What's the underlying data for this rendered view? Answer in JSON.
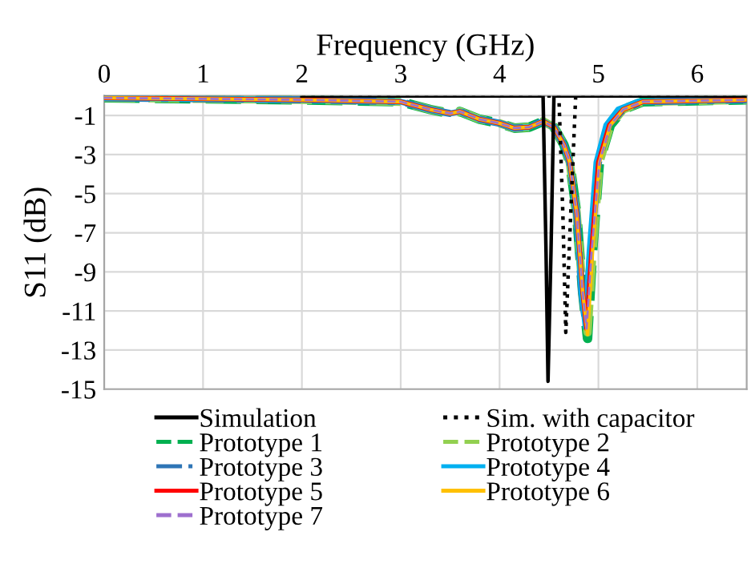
{
  "chart_data": {
    "type": "line",
    "xlabel": "Frequency (GHz)",
    "ylabel": "S11 (dB)",
    "xlim": [
      0,
      6.5
    ],
    "xticks": [
      0,
      1,
      2,
      3,
      4,
      5,
      6
    ],
    "ylim": [
      -15,
      0
    ],
    "yticks": [
      -1,
      -3,
      -5,
      -7,
      -9,
      -11,
      -13,
      -15
    ],
    "grid": true,
    "legend": "bottom",
    "marker": "none",
    "series": [
      {
        "name": "Simulation",
        "color": "#000000",
        "line_style": "solid",
        "x": [
          2,
          4.44,
          4.47,
          4.49,
          4.52,
          4.55,
          6.5
        ],
        "values": [
          0,
          0,
          -8,
          -14.6,
          -8,
          0,
          0
        ]
      },
      {
        "name": "Sim. with capacitor",
        "color": "#000000",
        "line_style": "dotted",
        "x": [
          2,
          4.6,
          4.64,
          4.67,
          4.72,
          4.77,
          6.5
        ],
        "values": [
          0,
          0,
          -6,
          -12.1,
          -6,
          0,
          0
        ]
      },
      {
        "name": "Prototype 1",
        "color": "#00b050",
        "line_style": "dashed",
        "x": [
          0,
          2,
          3,
          3.3,
          3.5,
          3.6,
          3.8,
          4.0,
          4.15,
          4.3,
          4.44,
          4.55,
          4.65,
          4.71,
          4.78,
          4.84,
          4.89,
          4.94,
          5.01,
          5.12,
          5.25,
          5.45,
          6.5
        ],
        "values": [
          -0.1,
          -0.2,
          -0.3,
          -0.7,
          -0.9,
          -0.8,
          -1.2,
          -1.4,
          -1.65,
          -1.6,
          -1.3,
          -1.6,
          -2.5,
          -3.4,
          -6,
          -10,
          -12.4,
          -8,
          -3.4,
          -1.5,
          -0.7,
          -0.3,
          -0.2
        ]
      },
      {
        "name": "Prototype 2",
        "color": "#92d050",
        "line_style": "dashed",
        "x": [
          0,
          2,
          3,
          3.3,
          3.5,
          3.6,
          3.8,
          4.0,
          4.15,
          4.3,
          4.44,
          4.55,
          4.65,
          4.71,
          4.78,
          4.84,
          4.89,
          4.94,
          5.01,
          5.12,
          5.25,
          5.45,
          6.5
        ],
        "values": [
          -0.1,
          -0.2,
          -0.3,
          -0.7,
          -0.9,
          -0.8,
          -1.2,
          -1.4,
          -1.65,
          -1.6,
          -1.3,
          -1.6,
          -2.5,
          -3.4,
          -6,
          -10,
          -12.1,
          -8,
          -3.4,
          -1.5,
          -0.7,
          -0.3,
          -0.2
        ]
      },
      {
        "name": "Prototype 3",
        "color": "#2e75b6",
        "line_style": "dashdot",
        "x": [
          0,
          2,
          3,
          3.3,
          3.5,
          3.6,
          3.8,
          4.0,
          4.15,
          4.3,
          4.44,
          4.55,
          4.65,
          4.71,
          4.78,
          4.83,
          4.87,
          4.92,
          5.0,
          5.1,
          5.25,
          5.45,
          6.5
        ],
        "values": [
          -0.1,
          -0.2,
          -0.3,
          -0.7,
          -0.9,
          -0.8,
          -1.2,
          -1.4,
          -1.65,
          -1.6,
          -1.3,
          -1.6,
          -2.5,
          -3.4,
          -6,
          -10,
          -11.6,
          -8,
          -3.4,
          -1.5,
          -0.7,
          -0.3,
          -0.2
        ]
      },
      {
        "name": "Prototype 4",
        "color": "#00b0f0",
        "line_style": "solid",
        "x": [
          0,
          2,
          3,
          3.3,
          3.5,
          3.6,
          3.8,
          4.0,
          4.15,
          4.3,
          4.44,
          4.55,
          4.65,
          4.71,
          4.78,
          4.83,
          4.87,
          4.91,
          4.98,
          5.08,
          5.2,
          5.4,
          6.5
        ],
        "values": [
          -0.1,
          -0.2,
          -0.3,
          -0.7,
          -0.9,
          -0.8,
          -1.2,
          -1.4,
          -1.65,
          -1.6,
          -1.3,
          -1.6,
          -2.5,
          -3.4,
          -6,
          -10,
          -11.8,
          -8,
          -3.4,
          -1.5,
          -0.7,
          -0.3,
          -0.2
        ]
      },
      {
        "name": "Prototype 5",
        "color": "#ff0000",
        "line_style": "solid",
        "x": [
          0,
          2,
          3,
          3.3,
          3.5,
          3.6,
          3.8,
          4.0,
          4.15,
          4.3,
          4.44,
          4.55,
          4.65,
          4.71,
          4.78,
          4.84,
          4.88,
          4.93,
          5.0,
          5.11,
          5.25,
          5.45,
          6.5
        ],
        "values": [
          -0.1,
          -0.2,
          -0.3,
          -0.7,
          -0.9,
          -0.8,
          -1.2,
          -1.4,
          -1.65,
          -1.6,
          -1.3,
          -1.6,
          -2.5,
          -3.4,
          -6,
          -10,
          -11.9,
          -8,
          -3.4,
          -1.5,
          -0.7,
          -0.3,
          -0.2
        ]
      },
      {
        "name": "Prototype 6",
        "color": "#ffc000",
        "line_style": "solid",
        "x": [
          0,
          2,
          3,
          3.3,
          3.5,
          3.6,
          3.8,
          4.0,
          4.15,
          4.3,
          4.44,
          4.55,
          4.65,
          4.71,
          4.78,
          4.84,
          4.89,
          4.94,
          5.01,
          5.12,
          5.25,
          5.45,
          6.5
        ],
        "values": [
          -0.1,
          -0.2,
          -0.3,
          -0.7,
          -0.9,
          -0.8,
          -1.2,
          -1.4,
          -1.65,
          -1.6,
          -1.3,
          -1.6,
          -2.5,
          -3.4,
          -6,
          -10,
          -12.2,
          -8,
          -3.4,
          -1.5,
          -0.7,
          -0.3,
          -0.2
        ]
      },
      {
        "name": "Prototype 7",
        "color": "#9e6fce",
        "line_style": "dashed",
        "x": [
          0,
          2,
          3,
          3.3,
          3.5,
          3.6,
          3.8,
          4.0,
          4.15,
          4.3,
          4.44,
          4.55,
          4.65,
          4.71,
          4.78,
          4.84,
          4.88,
          4.93,
          5.01,
          5.12,
          5.25,
          5.45,
          6.5
        ],
        "values": [
          -0.1,
          -0.2,
          -0.3,
          -0.7,
          -0.9,
          -0.8,
          -1.2,
          -1.4,
          -1.65,
          -1.6,
          -1.3,
          -1.6,
          -2.5,
          -3.4,
          -6,
          -10,
          -11.9,
          -8,
          -3.4,
          -1.5,
          -0.7,
          -0.3,
          -0.2
        ]
      }
    ]
  }
}
